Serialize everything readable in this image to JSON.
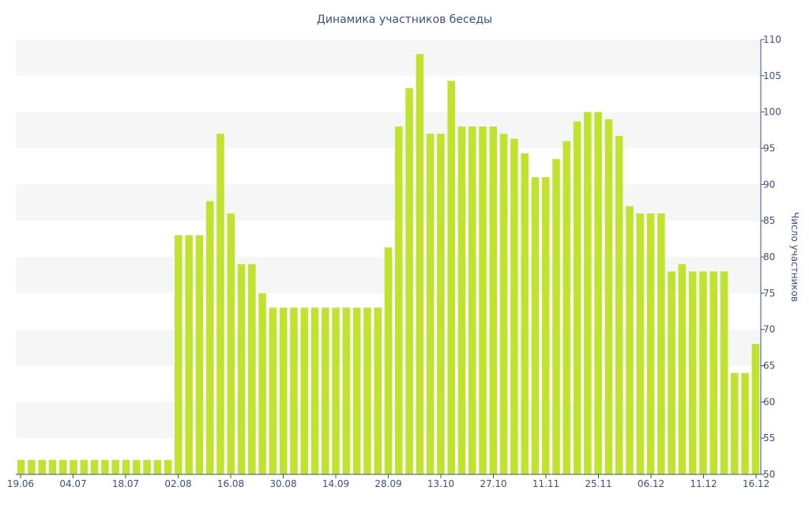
{
  "chart_data": {
    "type": "bar",
    "title": "Динамика участников беседы",
    "xlabel": "",
    "ylabel": "Число участников",
    "ylim": [
      50,
      110
    ],
    "y_ticks": [
      50,
      55,
      60,
      65,
      70,
      75,
      80,
      85,
      90,
      95,
      100,
      105,
      110
    ],
    "y_axis_side": "right",
    "x_tick_labels": [
      "19.06",
      "04.07",
      "18.07",
      "02.08",
      "16.08",
      "30.08",
      "14.09",
      "28.09",
      "13.10",
      "27.10",
      "11.11",
      "25.11",
      "06.12",
      "11.12",
      "16.12"
    ],
    "bar_color": "#bfe32f",
    "grid_band_color": "#f6f6f6",
    "series": [
      {
        "values": [
          52,
          52,
          52,
          52,
          52,
          52,
          52,
          52,
          52,
          52,
          52,
          52,
          52,
          52,
          52,
          83,
          83,
          83,
          87.7,
          97,
          86,
          79,
          79,
          75,
          73,
          73,
          73,
          73,
          73,
          73,
          73,
          73,
          73,
          73,
          73,
          81.3,
          98,
          103.3,
          108,
          97,
          97,
          104.3,
          98,
          98,
          98,
          98,
          97,
          96.3,
          94.3,
          91,
          91,
          93.5,
          96,
          98.7,
          100,
          100,
          99,
          96.7,
          87,
          86,
          86,
          86,
          78,
          79,
          78,
          78,
          78,
          78,
          64,
          64,
          68
        ]
      }
    ]
  }
}
